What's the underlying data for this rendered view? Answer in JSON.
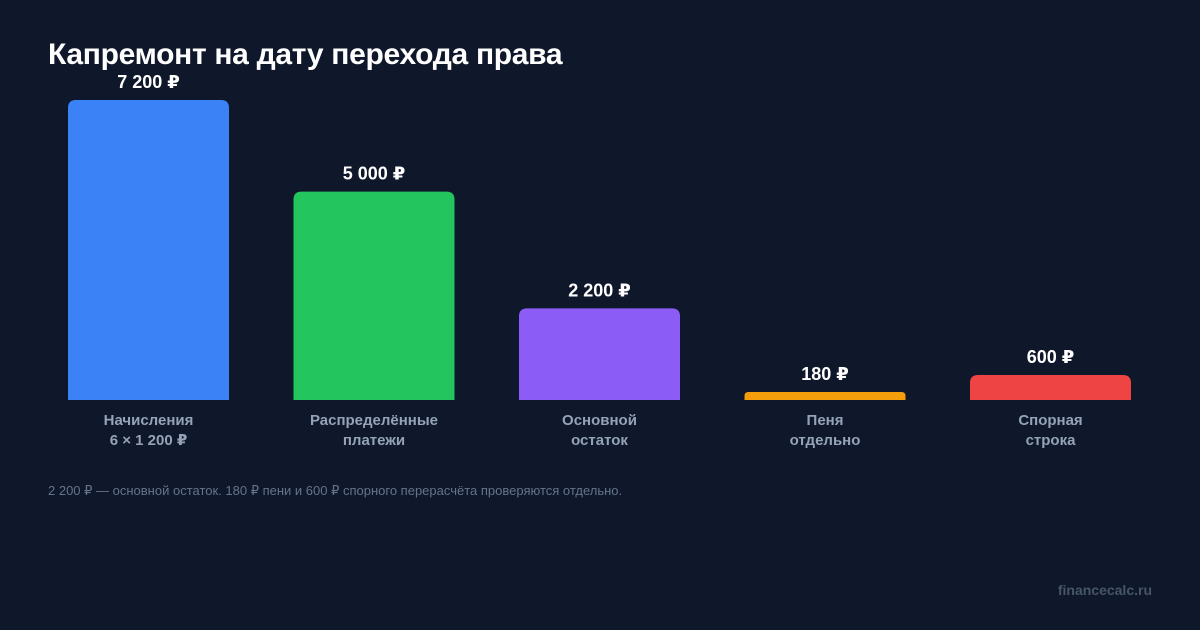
{
  "chart_data": {
    "type": "bar",
    "title": "Капремонт на дату перехода права",
    "categories": [
      [
        "Начисления",
        "6 × 1 200 ₽"
      ],
      [
        "Распределённые",
        "платежи"
      ],
      [
        "Основной",
        "остаток"
      ],
      [
        "Пеня",
        "отдельно"
      ],
      [
        "Спорная",
        "строка"
      ]
    ],
    "values": [
      7200,
      5000,
      2200,
      180,
      600
    ],
    "value_labels": [
      "7 200 ₽",
      "5 000 ₽",
      "2 200 ₽",
      "180 ₽",
      "600 ₽"
    ],
    "colors": [
      "#3b82f6",
      "#22c55e",
      "#8b5cf6",
      "#f59e0b",
      "#ef4444"
    ],
    "ylim": [
      0,
      7200
    ],
    "grid": false,
    "legend": false
  },
  "footnote": "2 200 ₽ — основной остаток. 180 ₽ пени и 600 ₽ спорного перерасчёта проверяются отдельно.",
  "watermark": "financecalc.ru"
}
